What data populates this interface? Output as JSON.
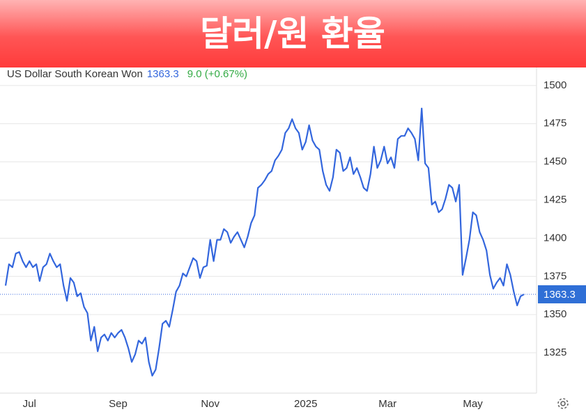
{
  "chart_data": {
    "type": "line",
    "title": "달러/원 환율",
    "series_name": "US Dollar South Korean Won",
    "last": 1363.3,
    "change_label": "9.0 (+0.67%)",
    "categories": [
      null,
      null,
      null,
      null,
      null,
      null,
      null,
      "Jul",
      null,
      null,
      null,
      null,
      null,
      null,
      null,
      null,
      null,
      null,
      null,
      null,
      null,
      null,
      null,
      null,
      null,
      null,
      null,
      null,
      null,
      null,
      null,
      null,
      null,
      "Sep",
      null,
      null,
      null,
      null,
      null,
      null,
      null,
      null,
      null,
      null,
      null,
      null,
      null,
      null,
      null,
      null,
      null,
      null,
      null,
      null,
      null,
      null,
      null,
      null,
      null,
      null,
      "Nov",
      null,
      null,
      null,
      null,
      null,
      null,
      null,
      null,
      null,
      null,
      null,
      null,
      null,
      null,
      null,
      null,
      null,
      null,
      null,
      null,
      null,
      null,
      null,
      null,
      null,
      null,
      null,
      "2025",
      null,
      null,
      null,
      null,
      null,
      null,
      null,
      null,
      null,
      null,
      null,
      null,
      null,
      null,
      null,
      null,
      null,
      null,
      null,
      null,
      null,
      null,
      null,
      "Mar",
      null,
      null,
      null,
      null,
      null,
      null,
      null,
      null,
      null,
      null,
      null,
      null,
      null,
      null,
      null,
      null,
      null,
      null,
      null,
      null,
      null,
      null,
      null,
      null,
      "May",
      null,
      null,
      null,
      null,
      null,
      null,
      null,
      null,
      null,
      null,
      null,
      null,
      null,
      null,
      null
    ],
    "series": [
      {
        "name": "US Dollar South Korean Won",
        "color": "#3366dd",
        "values": [
          1369,
          1383,
          1381,
          1390,
          1391,
          1385,
          1381,
          1385,
          1381,
          1383,
          1372,
          1381,
          1383,
          1390,
          1385,
          1381,
          1383,
          1369,
          1359,
          1374,
          1371,
          1362,
          1364,
          1355,
          1351,
          1333,
          1342,
          1326,
          1335,
          1337,
          1333,
          1338,
          1335,
          1338,
          1340,
          1335,
          1328,
          1319,
          1324,
          1333,
          1331,
          1335,
          1319,
          1310,
          1314,
          1328,
          1344,
          1346,
          1342,
          1353,
          1365,
          1369,
          1377,
          1375,
          1381,
          1387,
          1385,
          1374,
          1381,
          1382,
          1399,
          1385,
          1399,
          1399,
          1406,
          1404,
          1397,
          1401,
          1404,
          1399,
          1394,
          1401,
          1410,
          1415,
          1433,
          1435,
          1438,
          1442,
          1444,
          1451,
          1454,
          1458,
          1469,
          1472,
          1478,
          1472,
          1469,
          1458,
          1463,
          1474,
          1464,
          1460,
          1458,
          1444,
          1435,
          1431,
          1440,
          1458,
          1456,
          1444,
          1446,
          1453,
          1442,
          1446,
          1440,
          1433,
          1431,
          1442,
          1460,
          1446,
          1451,
          1460,
          1449,
          1453,
          1446,
          1465,
          1467,
          1467,
          1472,
          1469,
          1465,
          1451,
          1485,
          1449,
          1446,
          1422,
          1424,
          1417,
          1419,
          1426,
          1435,
          1433,
          1424,
          1435,
          1376,
          1387,
          1399,
          1417,
          1415,
          1404,
          1399,
          1392,
          1376,
          1367,
          1371,
          1374,
          1369,
          1383,
          1376,
          1365,
          1356,
          1362,
          1363.3
        ]
      }
    ],
    "ylim": [
      1298.6,
      1511.8
    ],
    "yticks": [
      1325,
      1350,
      1375,
      1400,
      1425,
      1450,
      1475,
      1500
    ],
    "grid": true
  }
}
